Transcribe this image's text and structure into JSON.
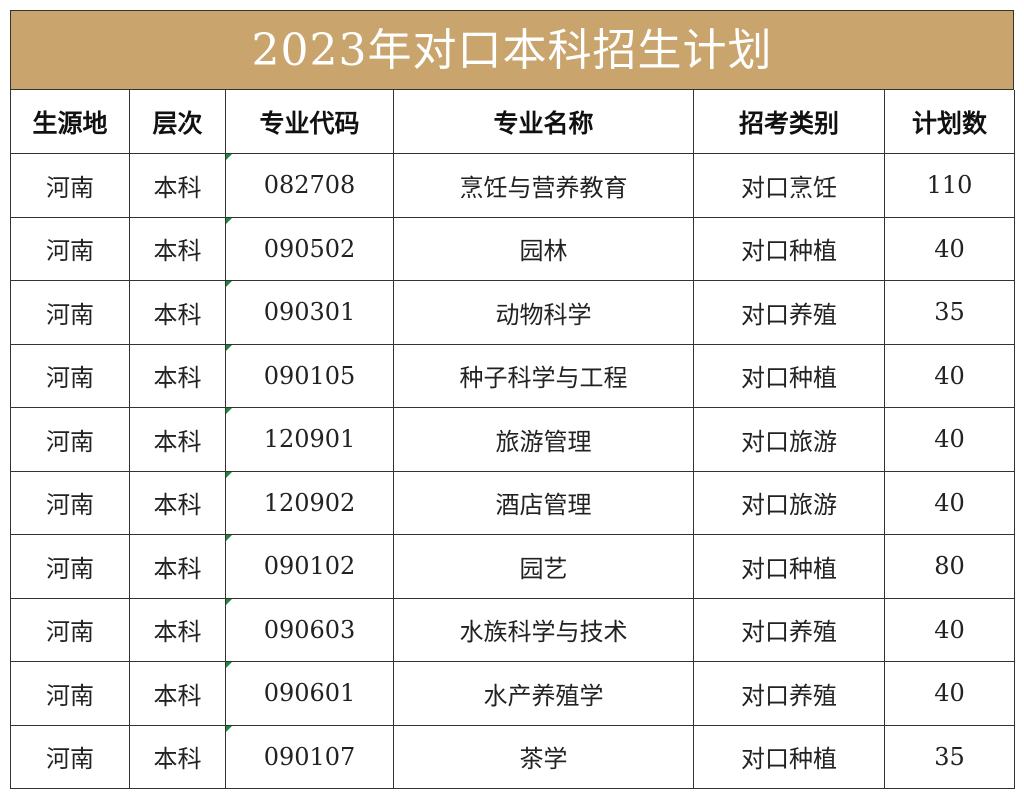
{
  "title": "2023年对口本科招生计划",
  "table": {
    "header": [
      "生源地",
      "层次",
      "专业代码",
      "专业名称",
      "招考类别",
      "计划数"
    ],
    "rows": [
      [
        "河南",
        "本科",
        "082708",
        "烹饪与营养教育",
        "对口烹饪",
        110
      ],
      [
        "河南",
        "本科",
        "090502",
        "园林",
        "对口种植",
        40
      ],
      [
        "河南",
        "本科",
        "090301",
        "动物科学",
        "对口养殖",
        35
      ],
      [
        "河南",
        "本科",
        "090105",
        "种子科学与工程",
        "对口种植",
        40
      ],
      [
        "河南",
        "本科",
        "120901",
        "旅游管理",
        "对口旅游",
        40
      ],
      [
        "河南",
        "本科",
        "120902",
        "酒店管理",
        "对口旅游",
        40
      ],
      [
        "河南",
        "本科",
        "090102",
        "园艺",
        "对口种植",
        80
      ],
      [
        "河南",
        "本科",
        "090603",
        "水族科学与技术",
        "对口养殖",
        40
      ],
      [
        "河南",
        "本科",
        "090601",
        "水产养殖学",
        "对口养殖",
        40
      ],
      [
        "河南",
        "本科",
        "090107",
        "茶学",
        "对口种植",
        35
      ]
    ]
  }
}
